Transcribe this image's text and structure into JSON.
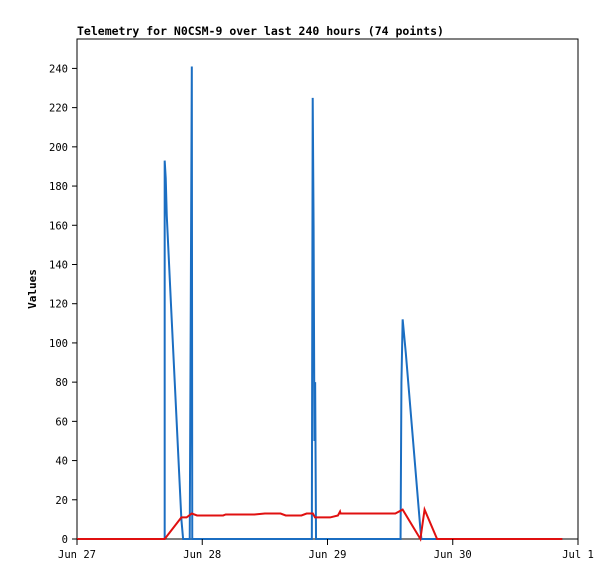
{
  "chart_data": {
    "type": "line",
    "title": "Telemetry for N0CSM-9 over last 240 hours (74 points)",
    "xlabel": "",
    "ylabel": "Values",
    "xlim": [
      "2020-06-27T00:00",
      "2020-07-01T00:00"
    ],
    "ylim": [
      0,
      255
    ],
    "x_ticks": [
      {
        "date": "2020-06-27T00:00",
        "label": "Jun 27"
      },
      {
        "date": "2020-06-28T00:00",
        "label": "Jun 28"
      },
      {
        "date": "2020-06-29T00:00",
        "label": "Jun 29"
      },
      {
        "date": "2020-06-30T00:00",
        "label": "Jun 30"
      },
      {
        "date": "2020-07-01T00:00",
        "label": "Jul 1"
      }
    ],
    "y_ticks": [
      0,
      20,
      40,
      60,
      80,
      100,
      120,
      140,
      160,
      180,
      200,
      220,
      240
    ],
    "grid": false,
    "colors": {
      "series_1": "#1b6ec2",
      "series_2": "#e01010"
    },
    "series": [
      {
        "color": "#1b6ec2",
        "points": [
          [
            "2020-06-27T00:00",
            0
          ],
          [
            "2020-06-27T16:48",
            0
          ],
          [
            "2020-06-27T16:48",
            193
          ],
          [
            "2020-06-27T17:00",
            184
          ],
          [
            "2020-06-27T17:12",
            165
          ],
          [
            "2020-06-27T18:00",
            120
          ],
          [
            "2020-06-27T20:00",
            10
          ],
          [
            "2020-06-27T20:20",
            0
          ],
          [
            "2020-06-27T21:36",
            0
          ],
          [
            "2020-06-27T21:48",
            120
          ],
          [
            "2020-06-27T22:00",
            241
          ],
          [
            "2020-06-27T22:05",
            0
          ],
          [
            "2020-06-28T21:00",
            0
          ],
          [
            "2020-06-28T21:10",
            225
          ],
          [
            "2020-06-28T21:20",
            160
          ],
          [
            "2020-06-28T21:30",
            50
          ],
          [
            "2020-06-28T21:38",
            80
          ],
          [
            "2020-06-28T21:48",
            0
          ],
          [
            "2020-06-29T14:00",
            0
          ],
          [
            "2020-06-29T14:10",
            80
          ],
          [
            "2020-06-29T14:24",
            112
          ],
          [
            "2020-06-29T15:00",
            95
          ],
          [
            "2020-06-29T17:48",
            5
          ],
          [
            "2020-06-29T18:00",
            0
          ],
          [
            "2020-06-30T21:00",
            0
          ]
        ]
      },
      {
        "color": "#e01010",
        "points": [
          [
            "2020-06-27T00:00",
            0
          ],
          [
            "2020-06-27T16:48",
            0
          ],
          [
            "2020-06-27T20:00",
            11
          ],
          [
            "2020-06-27T21:00",
            11
          ],
          [
            "2020-06-27T22:00",
            13
          ],
          [
            "2020-06-27T23:00",
            12
          ],
          [
            "2020-06-28T04:00",
            12
          ],
          [
            "2020-06-28T04:30",
            12.5
          ],
          [
            "2020-06-28T10:00",
            12.5
          ],
          [
            "2020-06-28T12:00",
            13
          ],
          [
            "2020-06-28T15:00",
            13
          ],
          [
            "2020-06-28T16:00",
            12
          ],
          [
            "2020-06-28T19:00",
            12
          ],
          [
            "2020-06-28T20:00",
            13
          ],
          [
            "2020-06-28T21:12",
            13
          ],
          [
            "2020-06-28T21:36",
            11
          ],
          [
            "2020-06-29T00:30",
            11
          ],
          [
            "2020-06-29T02:00",
            12
          ],
          [
            "2020-06-29T02:24",
            14
          ],
          [
            "2020-06-29T02:30",
            13
          ],
          [
            "2020-06-29T13:00",
            13
          ],
          [
            "2020-06-29T14:24",
            15
          ],
          [
            "2020-06-29T17:48",
            0
          ],
          [
            "2020-06-29T18:36",
            15
          ],
          [
            "2020-06-29T21:00",
            0
          ],
          [
            "2020-06-30T21:00",
            0
          ]
        ]
      }
    ]
  }
}
